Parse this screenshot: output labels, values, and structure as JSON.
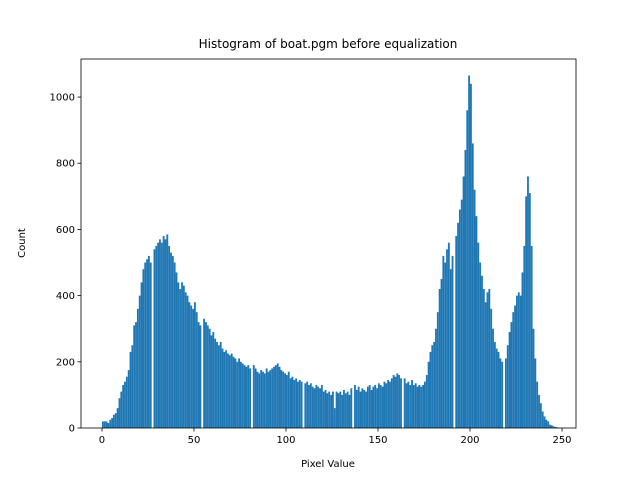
{
  "chart_data": {
    "type": "histogram",
    "title": "Histogram of boat.pgm before equalization",
    "xlabel": "Pixel Value",
    "ylabel": "Count",
    "color": "#1f77b4",
    "xlim": [
      -11.4,
      257.6
    ],
    "ylim": [
      0,
      1115
    ],
    "xticks": [
      0,
      50,
      100,
      150,
      200,
      250
    ],
    "yticks": [
      0,
      200,
      400,
      600,
      800,
      1000
    ],
    "bins": [
      0,
      1,
      2,
      3,
      4,
      5,
      6,
      7,
      8,
      9,
      10,
      11,
      12,
      13,
      14,
      15,
      16,
      17,
      18,
      19,
      20,
      21,
      22,
      23,
      24,
      25,
      26,
      27,
      28,
      29,
      30,
      31,
      32,
      33,
      34,
      35,
      36,
      37,
      38,
      39,
      40,
      41,
      42,
      43,
      44,
      45,
      46,
      47,
      48,
      49,
      50,
      51,
      52,
      53,
      54,
      55,
      56,
      57,
      58,
      59,
      60,
      61,
      62,
      63,
      64,
      65,
      66,
      67,
      68,
      69,
      70,
      71,
      72,
      73,
      74,
      75,
      76,
      77,
      78,
      79,
      80,
      81,
      82,
      83,
      84,
      85,
      86,
      87,
      88,
      89,
      90,
      91,
      92,
      93,
      94,
      95,
      96,
      97,
      98,
      99,
      100,
      101,
      102,
      103,
      104,
      105,
      106,
      107,
      108,
      109,
      110,
      111,
      112,
      113,
      114,
      115,
      116,
      117,
      118,
      119,
      120,
      121,
      122,
      123,
      124,
      125,
      126,
      127,
      128,
      129,
      130,
      131,
      132,
      133,
      134,
      135,
      136,
      137,
      138,
      139,
      140,
      141,
      142,
      143,
      144,
      145,
      146,
      147,
      148,
      149,
      150,
      151,
      152,
      153,
      154,
      155,
      156,
      157,
      158,
      159,
      160,
      161,
      162,
      163,
      164,
      165,
      166,
      167,
      168,
      169,
      170,
      171,
      172,
      173,
      174,
      175,
      176,
      177,
      178,
      179,
      180,
      181,
      182,
      183,
      184,
      185,
      186,
      187,
      188,
      189,
      190,
      191,
      192,
      193,
      194,
      195,
      196,
      197,
      198,
      199,
      200,
      201,
      202,
      203,
      204,
      205,
      206,
      207,
      208,
      209,
      210,
      211,
      212,
      213,
      214,
      215,
      216,
      217,
      218,
      219,
      220,
      221,
      222,
      223,
      224,
      225,
      226,
      227,
      228,
      229,
      230,
      231,
      232,
      233,
      234,
      235,
      236,
      237,
      238,
      239,
      240,
      241,
      242,
      243,
      244,
      245,
      246,
      247,
      248
    ],
    "counts": [
      20,
      20,
      20,
      15,
      25,
      30,
      40,
      45,
      60,
      90,
      110,
      130,
      140,
      155,
      175,
      230,
      250,
      310,
      320,
      360,
      400,
      440,
      480,
      500,
      510,
      520,
      500,
      0,
      540,
      550,
      560,
      570,
      560,
      580,
      570,
      585,
      550,
      530,
      520,
      500,
      470,
      440,
      420,
      440,
      430,
      410,
      400,
      380,
      370,
      360,
      380,
      350,
      320,
      310,
      0,
      330,
      320,
      310,
      300,
      280,
      290,
      270,
      260,
      250,
      260,
      240,
      230,
      235,
      225,
      220,
      225,
      215,
      210,
      200,
      210,
      200,
      195,
      190,
      185,
      190,
      180,
      0,
      190,
      180,
      170,
      165,
      175,
      170,
      165,
      180,
      170,
      175,
      180,
      185,
      190,
      195,
      185,
      175,
      170,
      165,
      160,
      170,
      150,
      155,
      145,
      150,
      140,
      145,
      140,
      0,
      135,
      140,
      130,
      135,
      125,
      120,
      130,
      125,
      120,
      130,
      110,
      115,
      105,
      110,
      100,
      110,
      60,
      110,
      105,
      110,
      100,
      115,
      105,
      110,
      100,
      120,
      0,
      130,
      115,
      125,
      110,
      120,
      115,
      110,
      125,
      130,
      115,
      125,
      130,
      120,
      135,
      130,
      125,
      140,
      135,
      145,
      140,
      150,
      160,
      155,
      165,
      160,
      150,
      0,
      150,
      135,
      140,
      130,
      145,
      130,
      135,
      125,
      130,
      125,
      130,
      140,
      160,
      200,
      230,
      250,
      260,
      300,
      350,
      420,
      450,
      520,
      500,
      540,
      560,
      480,
      520,
      0,
      580,
      620,
      660,
      690,
      760,
      840,
      960,
      1065,
      1040,
      860,
      720,
      640,
      560,
      500,
      460,
      420,
      380,
      410,
      420,
      360,
      300,
      260,
      240,
      230,
      210,
      200,
      0,
      210,
      250,
      290,
      320,
      350,
      370,
      400,
      410,
      400,
      470,
      550,
      700,
      760,
      710,
      550,
      300,
      210,
      140,
      100,
      75,
      50,
      35,
      25,
      20,
      10,
      8,
      5,
      3,
      2
    ]
  }
}
